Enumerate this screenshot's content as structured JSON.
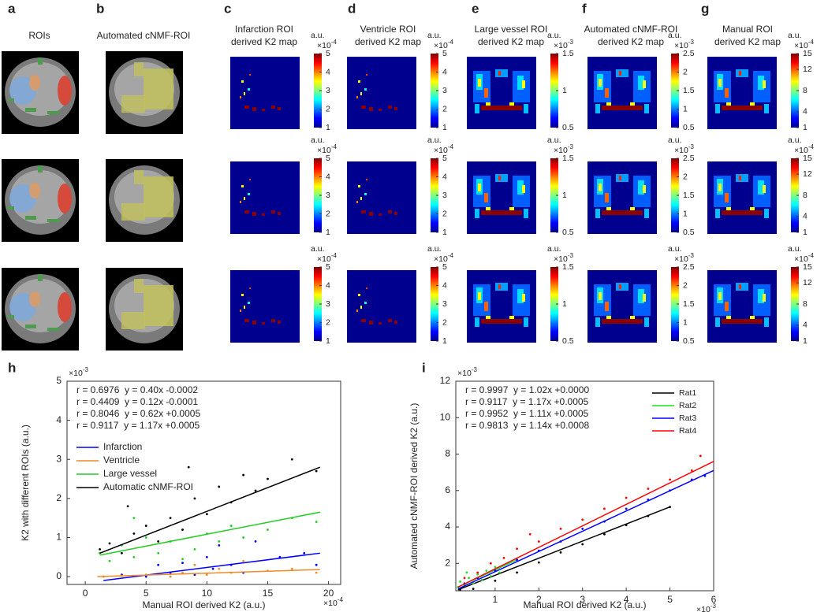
{
  "panels": [
    {
      "letter": "a",
      "title": [
        "ROIs"
      ]
    },
    {
      "letter": "b",
      "title": [
        "Automated cNMF-ROI"
      ]
    },
    {
      "letter": "c",
      "title": [
        "Infarction ROI",
        "derived K2 map"
      ],
      "colorbar": {
        "unit": "a.u.",
        "scale": {
          "base": "×10",
          "exponent": "-4"
        },
        "lim": [
          1,
          5
        ],
        "ticks": [
          1,
          2,
          3,
          4,
          5
        ]
      }
    },
    {
      "letter": "d",
      "title": [
        "Ventricle ROI",
        "derived K2 map"
      ],
      "colorbar": {
        "unit": "a.u.",
        "scale": {
          "base": "×10",
          "exponent": "-4"
        },
        "lim": [
          1,
          5
        ],
        "ticks": [
          1,
          2,
          3,
          4,
          5
        ]
      }
    },
    {
      "letter": "e",
      "title": [
        "Large vessel ROI",
        "derived K2 map"
      ],
      "colorbar": {
        "unit": "a.u.",
        "scale": {
          "base": "×10",
          "exponent": "-3"
        },
        "lim": [
          0.5,
          1.5
        ],
        "ticks": [
          0.5,
          1,
          1.5
        ]
      }
    },
    {
      "letter": "f",
      "title": [
        "Automated cNMF-ROI",
        "derived K2 map"
      ],
      "colorbar": {
        "unit": "a.u.",
        "scale": {
          "base": "×10",
          "exponent": "-3"
        },
        "lim": [
          0.5,
          2.5
        ],
        "ticks": [
          0.5,
          1,
          1.5,
          2,
          2.5
        ]
      }
    },
    {
      "letter": "g",
      "title": [
        "Manual ROI",
        "derived K2 map"
      ],
      "colorbar": {
        "unit": "a.u.",
        "scale": {
          "base": "×10",
          "exponent": "-4"
        },
        "lim": [
          1,
          15
        ],
        "ticks": [
          1,
          4,
          8,
          12,
          15
        ]
      }
    }
  ],
  "chart_data": [
    {
      "type": "scatter",
      "panel": "h",
      "xlabel": "Manual ROI derived K2 (a.u.)",
      "ylabel": "K2 with different ROIs (a.u.)",
      "x_scale": {
        "base": "×10",
        "exponent": "-4"
      },
      "y_scale": {
        "base": "×10",
        "exponent": "-3"
      },
      "xlim": [
        -1.5,
        21
      ],
      "ylim": [
        -0.2,
        5
      ],
      "xticks": [
        0,
        5,
        10,
        15,
        20
      ],
      "yticks": [
        0,
        1,
        2,
        3,
        4,
        5
      ],
      "legend": "upper left",
      "annotations": [
        {
          "text": "r = 0.6976  y = 0.40x -0.0002",
          "color": "#0000ff"
        },
        {
          "text": "r = 0.4409  y = 0.12x -0.0001",
          "color": "#f08a24"
        },
        {
          "text": "r = 0.8046  y = 0.62x +0.0005",
          "color": "#22cc22"
        },
        {
          "text": "r = 0.9117  y = 1.17x +0.0005",
          "color": "#000000"
        }
      ],
      "series": [
        {
          "name": "Infarction",
          "color": "#0000ff",
          "x": [
            3,
            5,
            6,
            7,
            8,
            9,
            10,
            10.5,
            11,
            12,
            13,
            14,
            16,
            18,
            19
          ],
          "values": [
            0.05,
            0,
            0.3,
            0.1,
            0.35,
            0.05,
            0.5,
            0.2,
            0.8,
            0.3,
            0.1,
            0.9,
            0.5,
            0.6,
            0.3
          ],
          "fit": {
            "x": [
              1.5,
              19.3
            ],
            "values": [
              -0.1,
              0.6
            ]
          }
        },
        {
          "name": "Ventricle",
          "color": "#f08a24",
          "x": [
            1.5,
            3,
            5,
            7,
            8,
            9,
            10,
            11,
            12,
            13,
            15,
            17,
            19
          ],
          "values": [
            0,
            0.02,
            0.05,
            0,
            0.1,
            0.3,
            0.05,
            0.2,
            0.1,
            0.4,
            0.15,
            0.2,
            0.1
          ],
          "fit": {
            "x": [
              1,
              19.3
            ],
            "values": [
              0,
              0.18
            ]
          }
        },
        {
          "name": "Large vessel",
          "color": "#22cc22",
          "x": [
            1.2,
            2,
            3,
            4,
            5,
            6,
            7,
            8,
            9,
            10,
            11,
            12,
            13,
            15,
            17,
            19,
            4,
            8
          ],
          "values": [
            0.6,
            0.4,
            0.8,
            0.5,
            1,
            0.6,
            0.9,
            1.2,
            0.7,
            1.1,
            0.9,
            1.3,
            1,
            1.2,
            1.5,
            1.4,
            1.5,
            0.45
          ],
          "fit": {
            "x": [
              1.2,
              19.3
            ],
            "values": [
              0.55,
              1.65
            ]
          }
        },
        {
          "name": "Automatic cNMF-ROI",
          "color": "#000000",
          "x": [
            1.2,
            2,
            3,
            4,
            5,
            6,
            7,
            8,
            9,
            10,
            11,
            12,
            13,
            14,
            15,
            17,
            19,
            3.5,
            8.5
          ],
          "values": [
            0.7,
            0.85,
            0.6,
            1.1,
            1.3,
            0.9,
            1.5,
            1.2,
            2,
            1.6,
            2.3,
            1.9,
            2.6,
            2.2,
            2.5,
            3,
            2.7,
            1.8,
            2.8
          ],
          "fit": {
            "x": [
              1.2,
              19.3
            ],
            "values": [
              0.6,
              2.8
            ]
          }
        }
      ]
    },
    {
      "type": "scatter",
      "panel": "i",
      "xlabel": "Manual ROI derived K2 (a.u.)",
      "ylabel": "Automated cNMF-ROI derived K2 (a.u.)",
      "x_scale": {
        "base": "×10",
        "exponent": "-3"
      },
      "y_scale": {
        "base": "×10",
        "exponent": "-3"
      },
      "xlim": [
        0.1,
        6
      ],
      "ylim": [
        0.5,
        12
      ],
      "xticks": [
        1,
        2,
        3,
        4,
        5,
        6
      ],
      "yticks": [
        2,
        4,
        6,
        8,
        10,
        12
      ],
      "legend": "upper right",
      "annotations": [
        {
          "text": "r = 0.9997  y = 1.02x +0.0000",
          "color": "#000000"
        },
        {
          "text": "r = 0.9117  y = 1.17x +0.0005",
          "color": "#22dd22"
        },
        {
          "text": "r = 0.9952  y = 1.11x +0.0005",
          "color": "#0000ff"
        },
        {
          "text": "r = 0.9813  y = 1.14x +0.0008",
          "color": "#ff0000"
        }
      ],
      "series": [
        {
          "name": "Rat1",
          "color": "#000000",
          "x": [
            0.2,
            0.5,
            1,
            1.5,
            2,
            2.5,
            3,
            3.5,
            4,
            4.5,
            5
          ],
          "values": [
            0.55,
            0.6,
            1.05,
            1.5,
            2.05,
            2.6,
            3.05,
            3.6,
            4.1,
            4.6,
            5.1
          ],
          "fit": {
            "x": [
              0.15,
              5
            ],
            "values": [
              0.55,
              5.1
            ]
          }
        },
        {
          "name": "Rat2",
          "color": "#22dd22",
          "x": [
            0.15,
            0.2,
            0.3,
            0.4,
            0.5,
            0.6,
            0.7,
            0.8,
            0.9,
            1,
            1.1,
            1.3,
            0.35
          ],
          "values": [
            0.7,
            1,
            0.8,
            1.2,
            0.9,
            1.4,
            1.1,
            1.6,
            1.3,
            1.8,
            1.5,
            2,
            1.5
          ],
          "fit": {
            "x": [
              0.15,
              1.5
            ],
            "values": [
              0.7,
              2.2
            ]
          }
        },
        {
          "name": "Rat3",
          "color": "#0000ff",
          "x": [
            0.3,
            0.6,
            1,
            1.5,
            2,
            2.5,
            3,
            3.5,
            4,
            4.5,
            5,
            5.5,
            5.8
          ],
          "values": [
            0.9,
            1.2,
            1.6,
            2.2,
            2.7,
            3.2,
            3.9,
            4.3,
            5,
            5.5,
            6,
            6.6,
            6.8
          ],
          "fit": {
            "x": [
              0.15,
              6
            ],
            "values": [
              0.6,
              7.1
            ]
          }
        },
        {
          "name": "Rat4",
          "color": "#ff0000",
          "x": [
            0.3,
            0.6,
            0.9,
            1.2,
            1.5,
            2,
            2.5,
            3,
            3.5,
            4,
            4.5,
            5,
            5.5,
            5.7,
            1.8
          ],
          "values": [
            1.2,
            1.5,
            2,
            2.3,
            2.8,
            3.2,
            3.9,
            4.4,
            5,
            5.6,
            6.1,
            6.6,
            7.1,
            7.9,
            3.6
          ],
          "fit": {
            "x": [
              0.15,
              6
            ],
            "values": [
              0.7,
              7.6
            ]
          }
        }
      ]
    }
  ]
}
